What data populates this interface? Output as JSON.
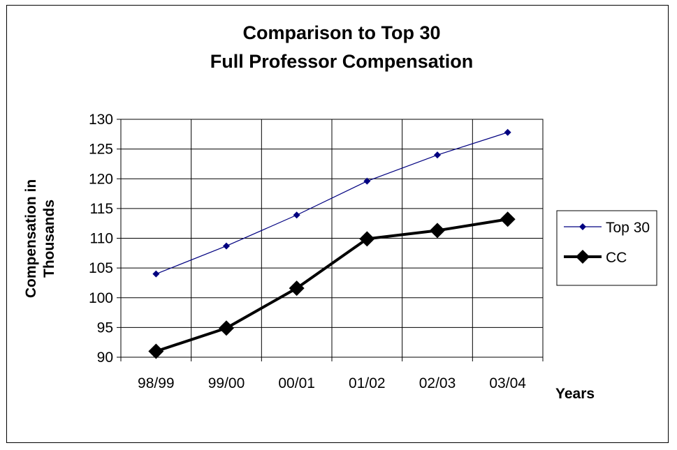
{
  "chart_data": {
    "type": "line",
    "title": [
      "Comparison to Top 30",
      "Full Professor Compensation"
    ],
    "xlabel": "Years",
    "ylabel": [
      "Compensation in",
      "Thousands"
    ],
    "categories": [
      "98/99",
      "99/00",
      "00/01",
      "01/02",
      "02/03",
      "03/04"
    ],
    "ylim": [
      90,
      130
    ],
    "yticks": [
      90,
      95,
      100,
      105,
      110,
      115,
      120,
      125,
      130
    ],
    "grid": true,
    "legend_position": "right",
    "series": [
      {
        "name": "Top 30",
        "values": [
          104.0,
          108.7,
          113.9,
          119.6,
          124.0,
          127.8
        ],
        "color": "#000080",
        "marker": "diamond",
        "line": "thin"
      },
      {
        "name": "CC",
        "values": [
          91.0,
          94.9,
          101.6,
          109.9,
          111.3,
          113.2
        ],
        "color": "#000000",
        "marker": "diamond",
        "line": "thick"
      }
    ]
  }
}
